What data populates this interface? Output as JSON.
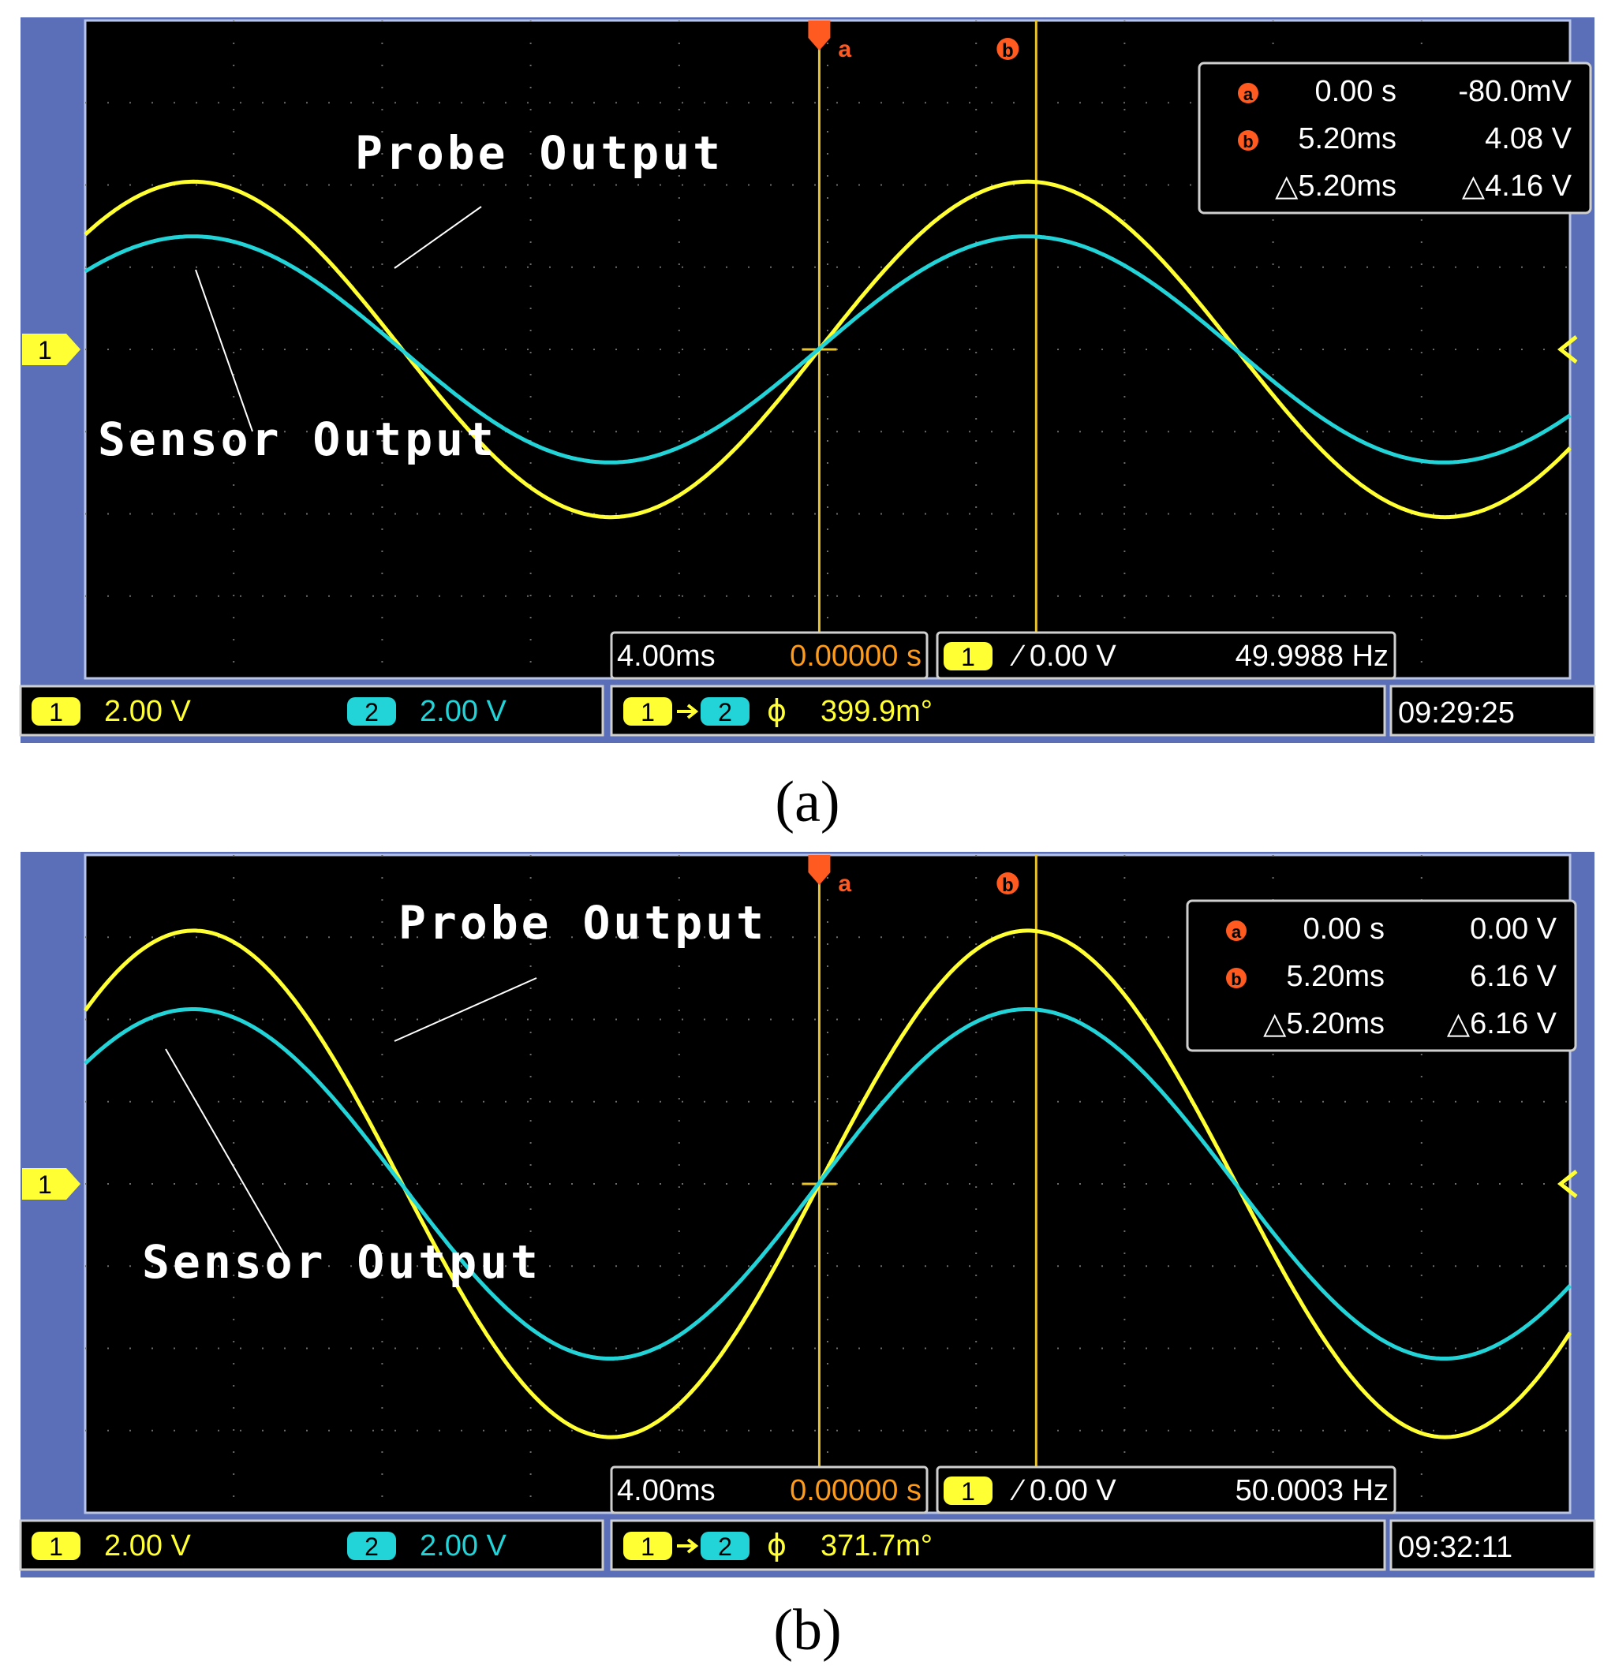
{
  "colors": {
    "ch1": "#ffff33",
    "ch2": "#22d3d8",
    "cursor": "#e8c32b",
    "frame": "#5a6fb8",
    "grid": "#6b6b6b",
    "marker": "#ff5a1f",
    "text_white": "#ffffff",
    "text_orange": "#ff9b1a",
    "bg": "#000000"
  },
  "panels": [
    {
      "caption": "(a)",
      "caption_bold": "a",
      "labels": {
        "probe": "Probe Output",
        "sensor": "Sensor Output"
      },
      "cursor_readout": {
        "a_marker": "a",
        "a_time": "0.00 s",
        "a_value": "-80.0mV",
        "b_marker": "b",
        "b_time": "5.20ms",
        "b_value": "4.08 V",
        "delta_time": "△5.20ms",
        "delta_value": "△4.16 V"
      },
      "timebase": {
        "per_div": "4.00ms",
        "position": "0.00000 s"
      },
      "trigger": {
        "channel": "1",
        "slope_level": "⁄ 0.00 V",
        "frequency": "49.9988 Hz"
      },
      "channels": [
        {
          "id": "1",
          "scale": "2.00 V"
        },
        {
          "id": "2",
          "scale": "2.00 V"
        }
      ],
      "phase": {
        "from": "1",
        "to": "2",
        "symbol": "ϕ",
        "value": "399.9m°"
      },
      "clock": "09:29:25",
      "ground_marker": "1",
      "chart_data": {
        "type": "line",
        "x_unit": "ms",
        "x_range": [
          -17.6,
          18.0
        ],
        "y_unit": "V",
        "y_range": [
          -8,
          8
        ],
        "grid": true,
        "cursors": {
          "a_ms": 0.0,
          "b_ms": 5.2
        },
        "series": [
          {
            "name": "Probe Output",
            "channel": "1",
            "frequency_hz": 49.9988,
            "amplitude_v": 4.08,
            "phase_deg": 0
          },
          {
            "name": "Sensor Output",
            "channel": "2",
            "frequency_hz": 49.9988,
            "amplitude_v": 2.75,
            "phase_deg": 0.3999
          }
        ]
      }
    },
    {
      "caption": "(b)",
      "caption_bold": "b",
      "labels": {
        "probe": "Probe Output",
        "sensor": "Sensor Output"
      },
      "cursor_readout": {
        "a_marker": "a",
        "a_time": "0.00 s",
        "a_value": "0.00 V",
        "b_marker": "b",
        "b_time": "5.20ms",
        "b_value": "6.16 V",
        "delta_time": "△5.20ms",
        "delta_value": "△6.16 V"
      },
      "timebase": {
        "per_div": "4.00ms",
        "position": "0.00000 s"
      },
      "trigger": {
        "channel": "1",
        "slope_level": "⁄ 0.00 V",
        "frequency": "50.0003 Hz"
      },
      "channels": [
        {
          "id": "1",
          "scale": "2.00 V"
        },
        {
          "id": "2",
          "scale": "2.00 V"
        }
      ],
      "phase": {
        "from": "1",
        "to": "2",
        "symbol": "ϕ",
        "value": "371.7m°"
      },
      "clock": "09:32:11",
      "ground_marker": "1",
      "chart_data": {
        "type": "line",
        "x_unit": "ms",
        "x_range": [
          -17.6,
          18.0
        ],
        "y_unit": "V",
        "y_range": [
          -8,
          8
        ],
        "grid": true,
        "cursors": {
          "a_ms": 0.0,
          "b_ms": 5.2
        },
        "series": [
          {
            "name": "Probe Output",
            "channel": "1",
            "frequency_hz": 50.0003,
            "amplitude_v": 6.16,
            "phase_deg": 0
          },
          {
            "name": "Sensor Output",
            "channel": "2",
            "frequency_hz": 50.0003,
            "amplitude_v": 4.25,
            "phase_deg": 0.3717
          }
        ]
      }
    }
  ]
}
